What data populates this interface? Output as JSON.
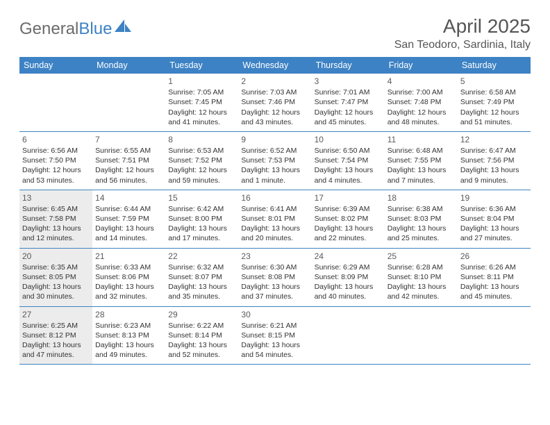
{
  "brand": {
    "name_gray": "General",
    "name_blue": "Blue"
  },
  "title": "April 2025",
  "location": "San Teodoro, Sardinia, Italy",
  "colors": {
    "header_bg": "#3d82c4",
    "shade_bg": "#ececec",
    "rule": "#3d82c4"
  },
  "dow": [
    "Sunday",
    "Monday",
    "Tuesday",
    "Wednesday",
    "Thursday",
    "Friday",
    "Saturday"
  ],
  "layout": {
    "leading_blanks": 2,
    "shaded_sunday_rows": [
      2,
      3,
      4
    ]
  },
  "days": [
    {
      "n": 1,
      "sunrise": "7:05 AM",
      "sunset": "7:45 PM",
      "dayh": 12,
      "daym": 41
    },
    {
      "n": 2,
      "sunrise": "7:03 AM",
      "sunset": "7:46 PM",
      "dayh": 12,
      "daym": 43
    },
    {
      "n": 3,
      "sunrise": "7:01 AM",
      "sunset": "7:47 PM",
      "dayh": 12,
      "daym": 45
    },
    {
      "n": 4,
      "sunrise": "7:00 AM",
      "sunset": "7:48 PM",
      "dayh": 12,
      "daym": 48
    },
    {
      "n": 5,
      "sunrise": "6:58 AM",
      "sunset": "7:49 PM",
      "dayh": 12,
      "daym": 51
    },
    {
      "n": 6,
      "sunrise": "6:56 AM",
      "sunset": "7:50 PM",
      "dayh": 12,
      "daym": 53
    },
    {
      "n": 7,
      "sunrise": "6:55 AM",
      "sunset": "7:51 PM",
      "dayh": 12,
      "daym": 56
    },
    {
      "n": 8,
      "sunrise": "6:53 AM",
      "sunset": "7:52 PM",
      "dayh": 12,
      "daym": 59
    },
    {
      "n": 9,
      "sunrise": "6:52 AM",
      "sunset": "7:53 PM",
      "dayh": 13,
      "daym": 1
    },
    {
      "n": 10,
      "sunrise": "6:50 AM",
      "sunset": "7:54 PM",
      "dayh": 13,
      "daym": 4
    },
    {
      "n": 11,
      "sunrise": "6:48 AM",
      "sunset": "7:55 PM",
      "dayh": 13,
      "daym": 7
    },
    {
      "n": 12,
      "sunrise": "6:47 AM",
      "sunset": "7:56 PM",
      "dayh": 13,
      "daym": 9
    },
    {
      "n": 13,
      "sunrise": "6:45 AM",
      "sunset": "7:58 PM",
      "dayh": 13,
      "daym": 12
    },
    {
      "n": 14,
      "sunrise": "6:44 AM",
      "sunset": "7:59 PM",
      "dayh": 13,
      "daym": 14
    },
    {
      "n": 15,
      "sunrise": "6:42 AM",
      "sunset": "8:00 PM",
      "dayh": 13,
      "daym": 17
    },
    {
      "n": 16,
      "sunrise": "6:41 AM",
      "sunset": "8:01 PM",
      "dayh": 13,
      "daym": 20
    },
    {
      "n": 17,
      "sunrise": "6:39 AM",
      "sunset": "8:02 PM",
      "dayh": 13,
      "daym": 22
    },
    {
      "n": 18,
      "sunrise": "6:38 AM",
      "sunset": "8:03 PM",
      "dayh": 13,
      "daym": 25
    },
    {
      "n": 19,
      "sunrise": "6:36 AM",
      "sunset": "8:04 PM",
      "dayh": 13,
      "daym": 27
    },
    {
      "n": 20,
      "sunrise": "6:35 AM",
      "sunset": "8:05 PM",
      "dayh": 13,
      "daym": 30
    },
    {
      "n": 21,
      "sunrise": "6:33 AM",
      "sunset": "8:06 PM",
      "dayh": 13,
      "daym": 32
    },
    {
      "n": 22,
      "sunrise": "6:32 AM",
      "sunset": "8:07 PM",
      "dayh": 13,
      "daym": 35
    },
    {
      "n": 23,
      "sunrise": "6:30 AM",
      "sunset": "8:08 PM",
      "dayh": 13,
      "daym": 37
    },
    {
      "n": 24,
      "sunrise": "6:29 AM",
      "sunset": "8:09 PM",
      "dayh": 13,
      "daym": 40
    },
    {
      "n": 25,
      "sunrise": "6:28 AM",
      "sunset": "8:10 PM",
      "dayh": 13,
      "daym": 42
    },
    {
      "n": 26,
      "sunrise": "6:26 AM",
      "sunset": "8:11 PM",
      "dayh": 13,
      "daym": 45
    },
    {
      "n": 27,
      "sunrise": "6:25 AM",
      "sunset": "8:12 PM",
      "dayh": 13,
      "daym": 47
    },
    {
      "n": 28,
      "sunrise": "6:23 AM",
      "sunset": "8:13 PM",
      "dayh": 13,
      "daym": 49
    },
    {
      "n": 29,
      "sunrise": "6:22 AM",
      "sunset": "8:14 PM",
      "dayh": 13,
      "daym": 52
    },
    {
      "n": 30,
      "sunrise": "6:21 AM",
      "sunset": "8:15 PM",
      "dayh": 13,
      "daym": 54
    }
  ],
  "labels": {
    "sunrise": "Sunrise:",
    "sunset": "Sunset:",
    "daylight_a": "Daylight:",
    "hours": "hours",
    "and": "and",
    "minute": "minute.",
    "minutes": "minutes."
  }
}
